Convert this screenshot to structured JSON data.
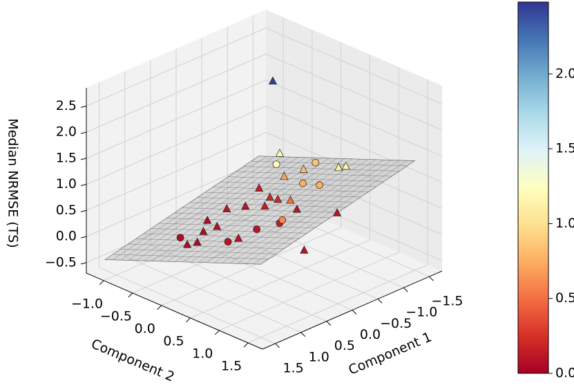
{
  "chart_data": {
    "type": "scatter3d",
    "xlabel": "Component 1",
    "ylabel": "Component 2",
    "zlabel": "Median NRMSE (TS)",
    "xlim": [
      -1.75,
      1.75
    ],
    "ylim": [
      -1.3,
      1.75
    ],
    "zlim": [
      -0.7,
      2.85
    ],
    "xticks": [
      {
        "value": -1.5,
        "label": "−1.5"
      },
      {
        "value": -1.0,
        "label": "−1.0"
      },
      {
        "value": -0.5,
        "label": "−0.5"
      },
      {
        "value": 0.0,
        "label": "0.0"
      },
      {
        "value": 0.5,
        "label": "0.5"
      },
      {
        "value": 1.0,
        "label": "1.0"
      },
      {
        "value": 1.5,
        "label": "1.5"
      }
    ],
    "yticks": [
      {
        "value": -1.0,
        "label": "−1.0"
      },
      {
        "value": -0.5,
        "label": "−0.5"
      },
      {
        "value": 0.0,
        "label": "0.0"
      },
      {
        "value": 0.5,
        "label": "0.5"
      },
      {
        "value": 1.0,
        "label": "1.0"
      },
      {
        "value": 1.5,
        "label": "1.5"
      }
    ],
    "zticks": [
      {
        "value": -0.5,
        "label": "−0.5"
      },
      {
        "value": 0.0,
        "label": "0.0"
      },
      {
        "value": 0.5,
        "label": "0.5"
      },
      {
        "value": 1.0,
        "label": "1.0"
      },
      {
        "value": 1.5,
        "label": "1.5"
      },
      {
        "value": 2.0,
        "label": "2.0"
      },
      {
        "value": 2.5,
        "label": "2.5"
      }
    ],
    "grid": true,
    "colormap": "RdYlBu",
    "surface": {
      "x": [
        -1.5,
        1.5
      ],
      "y": [
        -1.2,
        1.5
      ],
      "z": [
        [
          0.2,
          1.4
        ],
        [
          -0.5,
          0.7
        ]
      ],
      "color": "#aaaaaa"
    },
    "series": [
      {
        "marker": "triangle",
        "x": [
          -0.68,
          -0.59,
          -0.96,
          -1.0,
          0.06,
          -1.1,
          -0.68,
          -0.36,
          -0.84,
          -0.93,
          -0.7,
          -0.46,
          -0.12,
          0.27,
          0.56,
          0.35,
          1.01,
          0.43,
          -0.49,
          -0.71,
          -0.79,
          0.86
        ],
        "y": [
          -0.23,
          -0.03,
          0.66,
          0.75,
          0.97,
          0.51,
          -0.28,
          -0.42,
          -0.61,
          0.08,
          -0.05,
          0.27,
          -0.53,
          -0.52,
          -0.33,
          -0.28,
          -0.21,
          0.16,
          -0.2,
          -0.17,
          0.09,
          -0.17
        ],
        "z": [
          2.45,
          1.2,
          1.1,
          1.15,
          0.1,
          0.1,
          0.2,
          0.1,
          0.15,
          0.8,
          0.7,
          0.5,
          0.1,
          0.05,
          0.05,
          0.08,
          0.05,
          0.1,
          0.15,
          0.2,
          0.1,
          0.05
        ]
      },
      {
        "marker": "circle",
        "x": [
          -1.14,
          -0.79,
          0.05,
          -0.25,
          0.18,
          0.61,
          -0.67,
          -0.31,
          0.92
        ],
        "y": [
          0.1,
          0.48,
          0.14,
          0.27,
          0.7,
          0.14,
          0.3,
          0.16,
          -0.41
        ],
        "z": [
          0.85,
          0.75,
          0.1,
          0.15,
          0.6,
          0.1,
          0.75,
          1.2,
          0.05
        ]
      }
    ],
    "colorbar": {
      "lim": [
        0,
        2.48
      ],
      "ticks": [
        {
          "value": 0.0,
          "label": "0.0"
        },
        {
          "value": 0.5,
          "label": "0.5"
        },
        {
          "value": 1.0,
          "label": "1.0"
        },
        {
          "value": 1.5,
          "label": "1.5"
        },
        {
          "value": 2.0,
          "label": "2.0"
        }
      ]
    }
  }
}
